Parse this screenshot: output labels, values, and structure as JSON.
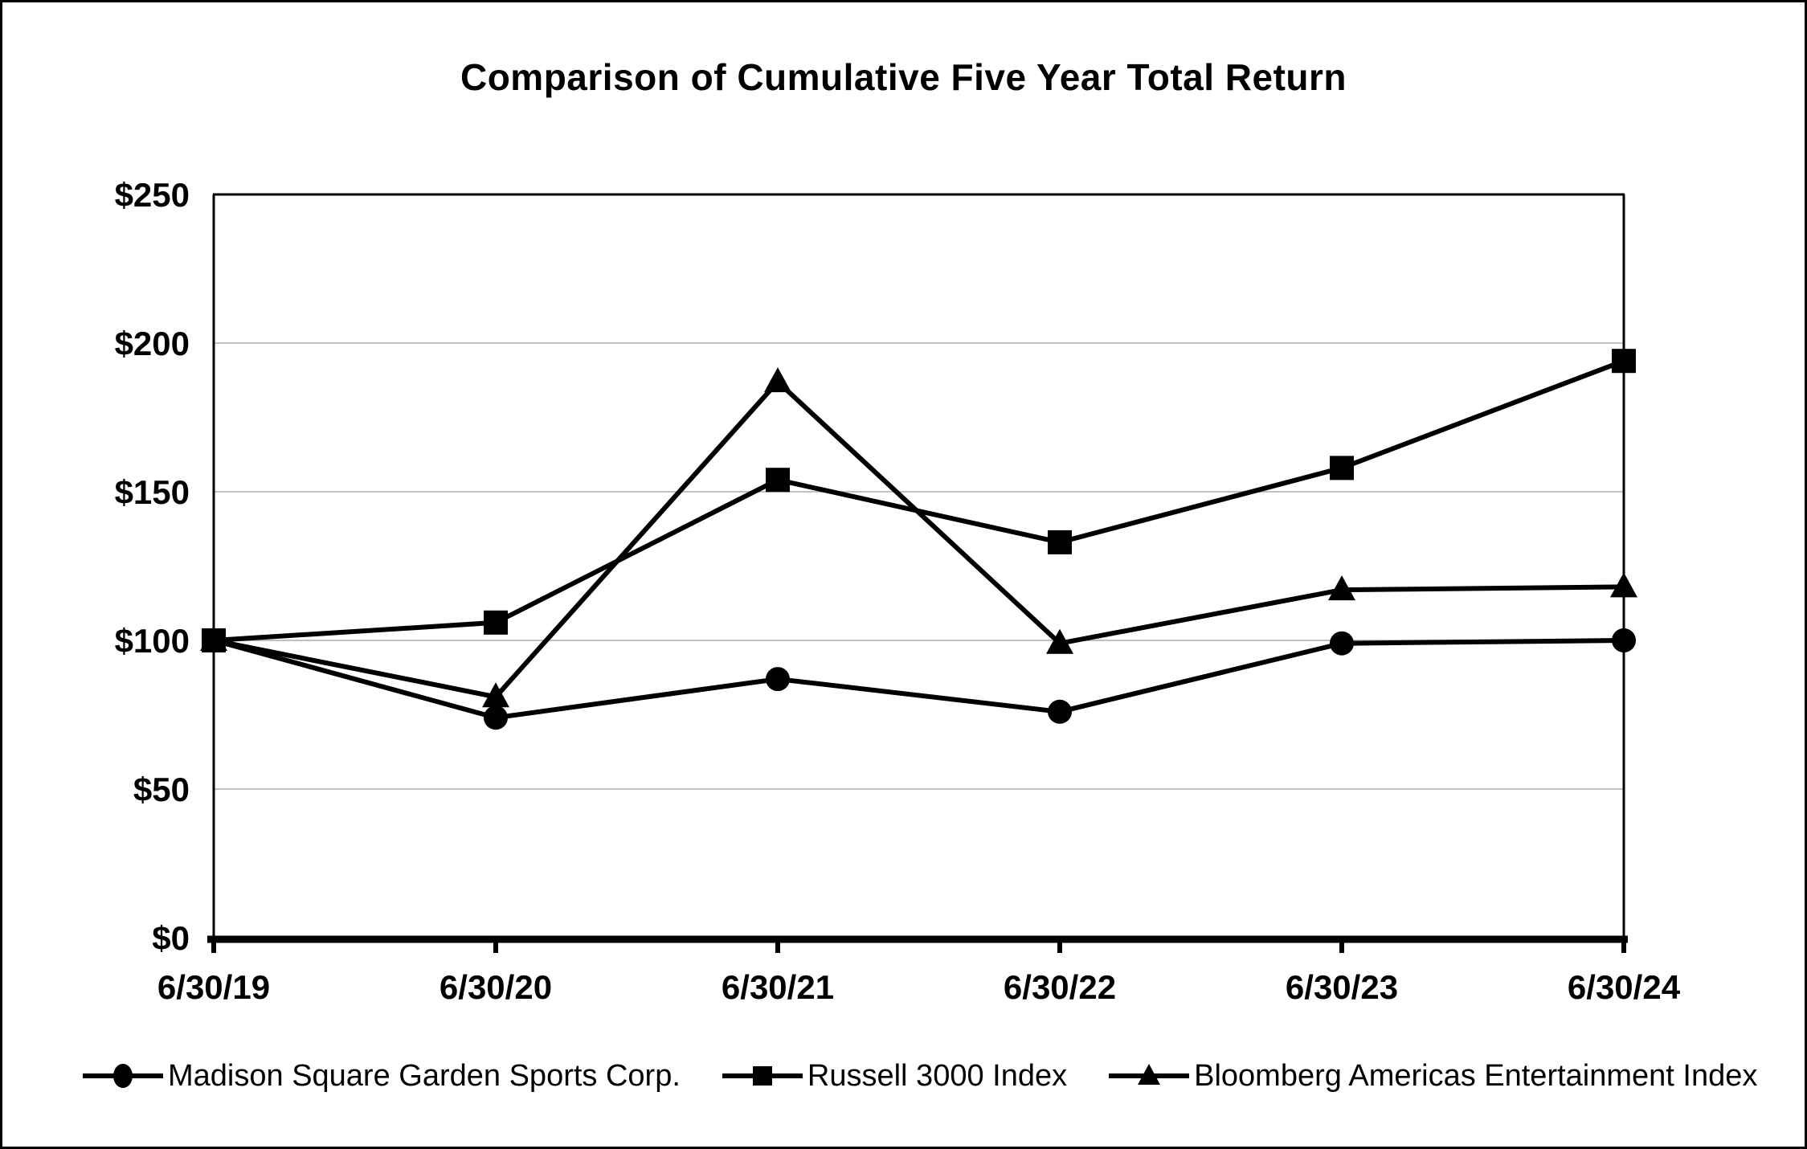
{
  "chart_data": {
    "type": "line",
    "title": "Comparison of Cumulative Five Year Total Return",
    "x": [
      "6/30/19",
      "6/30/20",
      "6/30/21",
      "6/30/22",
      "6/30/23",
      "6/30/24"
    ],
    "series": [
      {
        "name": "Madison Square Garden Sports Corp.",
        "marker": "circle",
        "values": [
          100,
          74,
          87,
          76,
          99,
          100
        ]
      },
      {
        "name": "Russell 3000 Index",
        "marker": "square",
        "values": [
          100,
          106,
          154,
          133,
          158,
          194
        ]
      },
      {
        "name": "Bloomberg Americas Entertainment Index",
        "marker": "triangle",
        "values": [
          100,
          81,
          187,
          99,
          117,
          118
        ]
      }
    ],
    "y_tick_labels": [
      "$0",
      "$50",
      "$100",
      "$150",
      "$200",
      "$250"
    ],
    "y_tick_values": [
      0,
      50,
      100,
      150,
      200,
      250
    ],
    "ylim": [
      0,
      250
    ],
    "grid": true,
    "legend_position": "bottom",
    "colors": {
      "series": "#000000",
      "grid": "#c0c0c0",
      "background": "#ffffff"
    }
  }
}
